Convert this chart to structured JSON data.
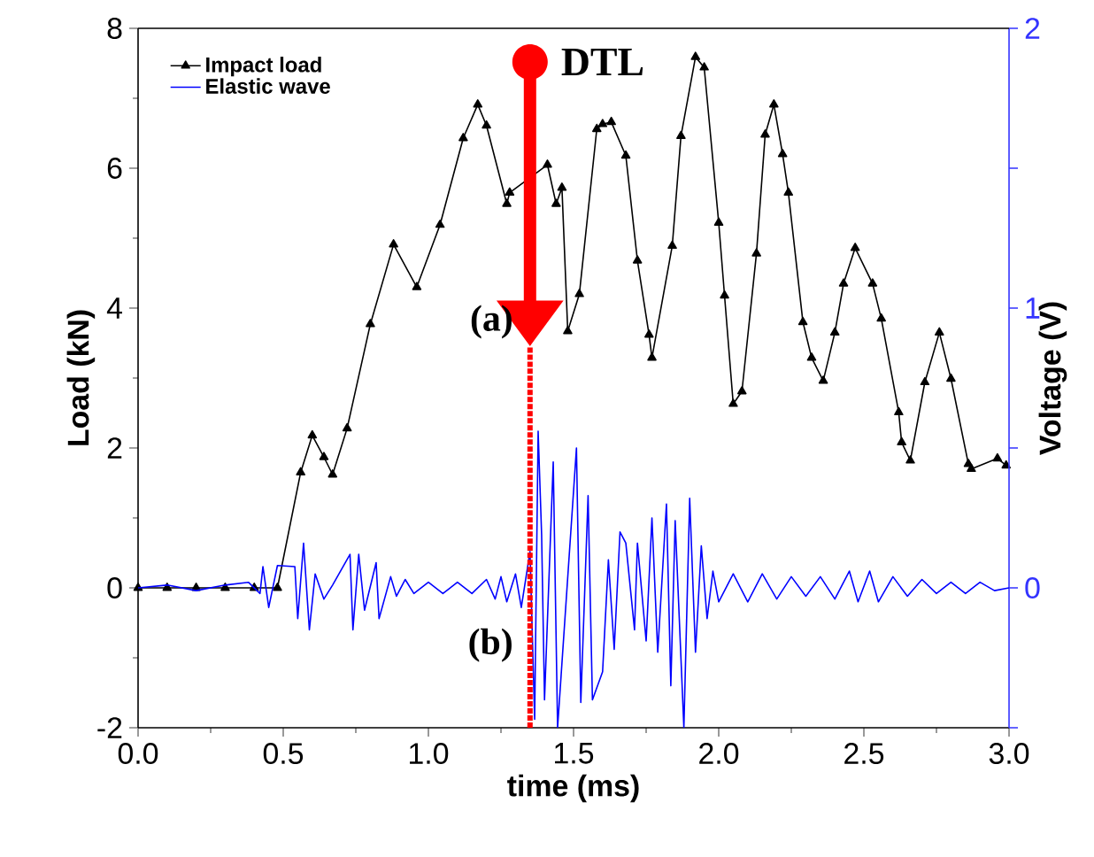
{
  "chart_data": {
    "type": "line",
    "xlabel": "time (ms)",
    "ylabel": "Load (kN)",
    "y2label": "Voltage (V)",
    "xlim": [
      0,
      3
    ],
    "xticks": [
      {
        "value": 0,
        "label": "0.0"
      },
      0.5,
      {
        "value": 1,
        "label": "1.0"
      },
      1.5,
      {
        "value": 2,
        "label": "2.0"
      },
      2.5,
      {
        "value": 3,
        "label": "3.0"
      }
    ],
    "ylim": [
      -2,
      8
    ],
    "yticks": [
      -2,
      0,
      2,
      4,
      6,
      8
    ],
    "y2lim": [
      -0.5,
      2
    ],
    "y2ticks": [
      {
        "value": -0.5,
        "label": null
      },
      0,
      {
        "value": 0.5,
        "label": null
      },
      1,
      {
        "value": 1.5,
        "label": null
      },
      2
    ],
    "legend": "top left",
    "grid": false,
    "series": [
      {
        "name": "Impact load",
        "color": "#000000",
        "marker": "triangle",
        "x": [
          0,
          0.1,
          0.2,
          0.3,
          0.4,
          0.48,
          0.56,
          0.6,
          0.64,
          0.67,
          0.72,
          0.8,
          0.88,
          0.96,
          1.04,
          1.12,
          1.17,
          1.2,
          1.27,
          1.28,
          1.35,
          1.37,
          1.41,
          1.44,
          1.46,
          1.48,
          1.52,
          1.58,
          1.6,
          1.63,
          1.68,
          1.72,
          1.76,
          1.77,
          1.84,
          1.87,
          1.92,
          1.95,
          2.0,
          2.02,
          2.05,
          2.08,
          2.13,
          2.16,
          2.19,
          2.22,
          2.24,
          2.29,
          2.32,
          2.36,
          2.4,
          2.43,
          2.47,
          2.53,
          2.56,
          2.62,
          2.63,
          2.66,
          2.71,
          2.76,
          2.8,
          2.86,
          2.87,
          2.96,
          2.99
        ],
        "values": [
          0,
          0,
          0,
          0,
          0,
          0,
          1.65,
          2.18,
          1.87,
          1.62,
          2.28,
          3.77,
          4.91,
          4.3,
          5.19,
          6.43,
          6.91,
          6.61,
          5.49,
          5.65,
          null,
          null,
          6.05,
          5.49,
          5.72,
          3.67,
          4.2,
          6.56,
          6.63,
          6.66,
          6.18,
          4.68,
          3.62,
          3.29,
          4.89,
          6.46,
          7.59,
          7.44,
          5.22,
          4.18,
          2.63,
          2.81,
          4.78,
          6.48,
          6.91,
          6.2,
          5.65,
          3.8,
          3.29,
          2.96,
          3.65,
          4.35,
          4.86,
          4.35,
          3.85,
          2.51,
          2.08,
          1.82,
          2.94,
          3.65,
          2.99,
          1.77,
          1.7,
          1.85,
          1.75
        ]
      },
      {
        "name": "Elastic wave",
        "color": "#0000ff",
        "axis": "y2",
        "x": [
          0,
          0.1,
          0.2,
          0.3,
          0.38,
          0.42,
          0.43,
          0.45,
          0.48,
          0.54,
          0.55,
          0.57,
          0.59,
          0.61,
          0.64,
          0.67,
          0.73,
          0.74,
          0.76,
          0.78,
          0.82,
          0.83,
          0.87,
          0.89,
          0.92,
          0.95,
          1.0,
          1.05,
          1.1,
          1.15,
          1.2,
          1.23,
          1.25,
          1.27,
          1.3,
          1.32,
          1.35,
          1.366,
          1.378,
          1.39,
          1.4,
          1.43,
          1.445,
          1.51,
          1.525,
          1.55,
          1.565,
          1.6,
          1.62,
          1.64,
          1.66,
          1.68,
          1.71,
          1.72,
          1.75,
          1.77,
          1.79,
          1.82,
          1.835,
          1.85,
          1.88,
          1.9,
          1.92,
          1.94,
          1.96,
          1.98,
          2.0,
          2.05,
          2.1,
          2.15,
          2.2,
          2.25,
          2.3,
          2.35,
          2.4,
          2.45,
          2.48,
          2.52,
          2.55,
          2.6,
          2.65,
          2.7,
          2.75,
          2.8,
          2.85,
          2.9,
          2.95,
          3.0
        ],
        "values": [
          0,
          0.01,
          -0.01,
          0.01,
          0.02,
          -0.02,
          0.076,
          -0.07,
          0.08,
          0.076,
          -0.11,
          0.16,
          -0.15,
          0.05,
          -0.04,
          0.01,
          0.12,
          -0.15,
          0.12,
          -0.08,
          0.09,
          -0.11,
          0.04,
          -0.03,
          0.03,
          -0.02,
          0.02,
          -0.02,
          0.02,
          -0.02,
          0.03,
          -0.04,
          0.04,
          -0.05,
          0.05,
          -0.07,
          0.13,
          -0.47,
          0.56,
          0.19,
          -0.4,
          0.45,
          -0.5,
          0.5,
          -0.41,
          0.33,
          -0.4,
          -0.3,
          0.1,
          -0.22,
          0.2,
          0.16,
          -0.15,
          0.16,
          -0.19,
          0.25,
          -0.23,
          0.3,
          -0.35,
          0.24,
          -0.5,
          0.32,
          -0.23,
          0.15,
          -0.11,
          0.06,
          -0.05,
          0.05,
          -0.05,
          0.05,
          -0.04,
          0.04,
          -0.03,
          0.04,
          -0.04,
          0.06,
          -0.05,
          0.06,
          -0.05,
          0.04,
          -0.03,
          0.03,
          -0.02,
          0.02,
          -0.02,
          0.02,
          -0.01,
          0
        ]
      }
    ],
    "ref_lines": [
      {
        "axis": "x",
        "value": 1.35,
        "label": "DTL",
        "color": "#ff0000",
        "line_style": "dotted"
      }
    ],
    "annotations": [
      "(a)",
      "(b)"
    ]
  }
}
